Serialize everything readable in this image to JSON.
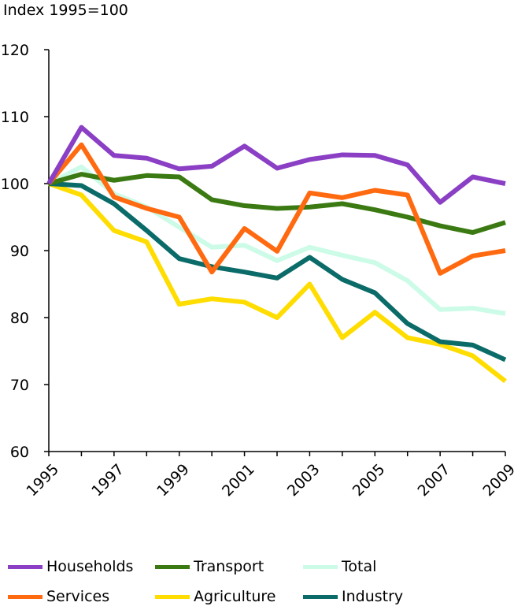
{
  "chart_data": {
    "type": "line",
    "title": "",
    "ylabel": "Index 1995=100",
    "xlabel": "",
    "ylim": [
      60,
      120
    ],
    "yticks": [
      60,
      70,
      80,
      90,
      100,
      110,
      120
    ],
    "x": [
      1995,
      1996,
      1997,
      1998,
      1999,
      2000,
      2001,
      2002,
      2003,
      2004,
      2005,
      2006,
      2007,
      2008,
      2009
    ],
    "xtick_labels": [
      "1995",
      "1997",
      "1999",
      "2001",
      "2003",
      "2005",
      "2007",
      "2009"
    ],
    "grid": false,
    "legend_position": "bottom",
    "series": [
      {
        "name": "Total",
        "color": "#ccfbe8",
        "values": [
          100,
          102.5,
          98.5,
          96.5,
          93.5,
          90.5,
          90.8,
          88.5,
          90.5,
          89.3,
          88.2,
          85.5,
          81.2,
          81.4,
          80.6
        ]
      },
      {
        "name": "Agriculture",
        "color": "#ffdd00",
        "values": [
          100,
          98.3,
          93,
          91.3,
          82,
          82.8,
          82.3,
          80,
          85,
          77,
          80.8,
          77,
          76,
          74.3,
          70.5
        ]
      },
      {
        "name": "Industry",
        "color": "#0a6b68",
        "values": [
          100,
          99.7,
          97,
          93,
          88.8,
          87.6,
          86.8,
          85.9,
          89,
          85.7,
          83.7,
          79.1,
          76.4,
          75.9,
          73.7
        ]
      },
      {
        "name": "Transport",
        "color": "#3b7a12",
        "values": [
          100,
          101.4,
          100.5,
          101.2,
          101,
          97.6,
          96.7,
          96.3,
          96.5,
          97,
          96.1,
          95,
          93.7,
          92.7,
          94.2
        ]
      },
      {
        "name": "Services",
        "color": "#ff6a10",
        "values": [
          100,
          105.8,
          98,
          96.3,
          95,
          86.8,
          93.3,
          89.9,
          98.6,
          97.9,
          99,
          98.3,
          86.6,
          89.2,
          90
        ]
      },
      {
        "name": "Households",
        "color": "#8a3fc4",
        "values": [
          100,
          108.4,
          104.2,
          103.8,
          102.2,
          102.6,
          105.6,
          102.3,
          103.6,
          104.3,
          104.2,
          102.8,
          97.2,
          101,
          100
        ]
      }
    ]
  },
  "legend": [
    {
      "name": "Households",
      "color": "#8a3fc4"
    },
    {
      "name": "Transport",
      "color": "#3b7a12"
    },
    {
      "name": "Total",
      "color": "#ccfbe8"
    },
    {
      "name": "Services",
      "color": "#ff6a10"
    },
    {
      "name": "Agriculture",
      "color": "#ffdd00"
    },
    {
      "name": "Industry",
      "color": "#0a6b68"
    }
  ]
}
